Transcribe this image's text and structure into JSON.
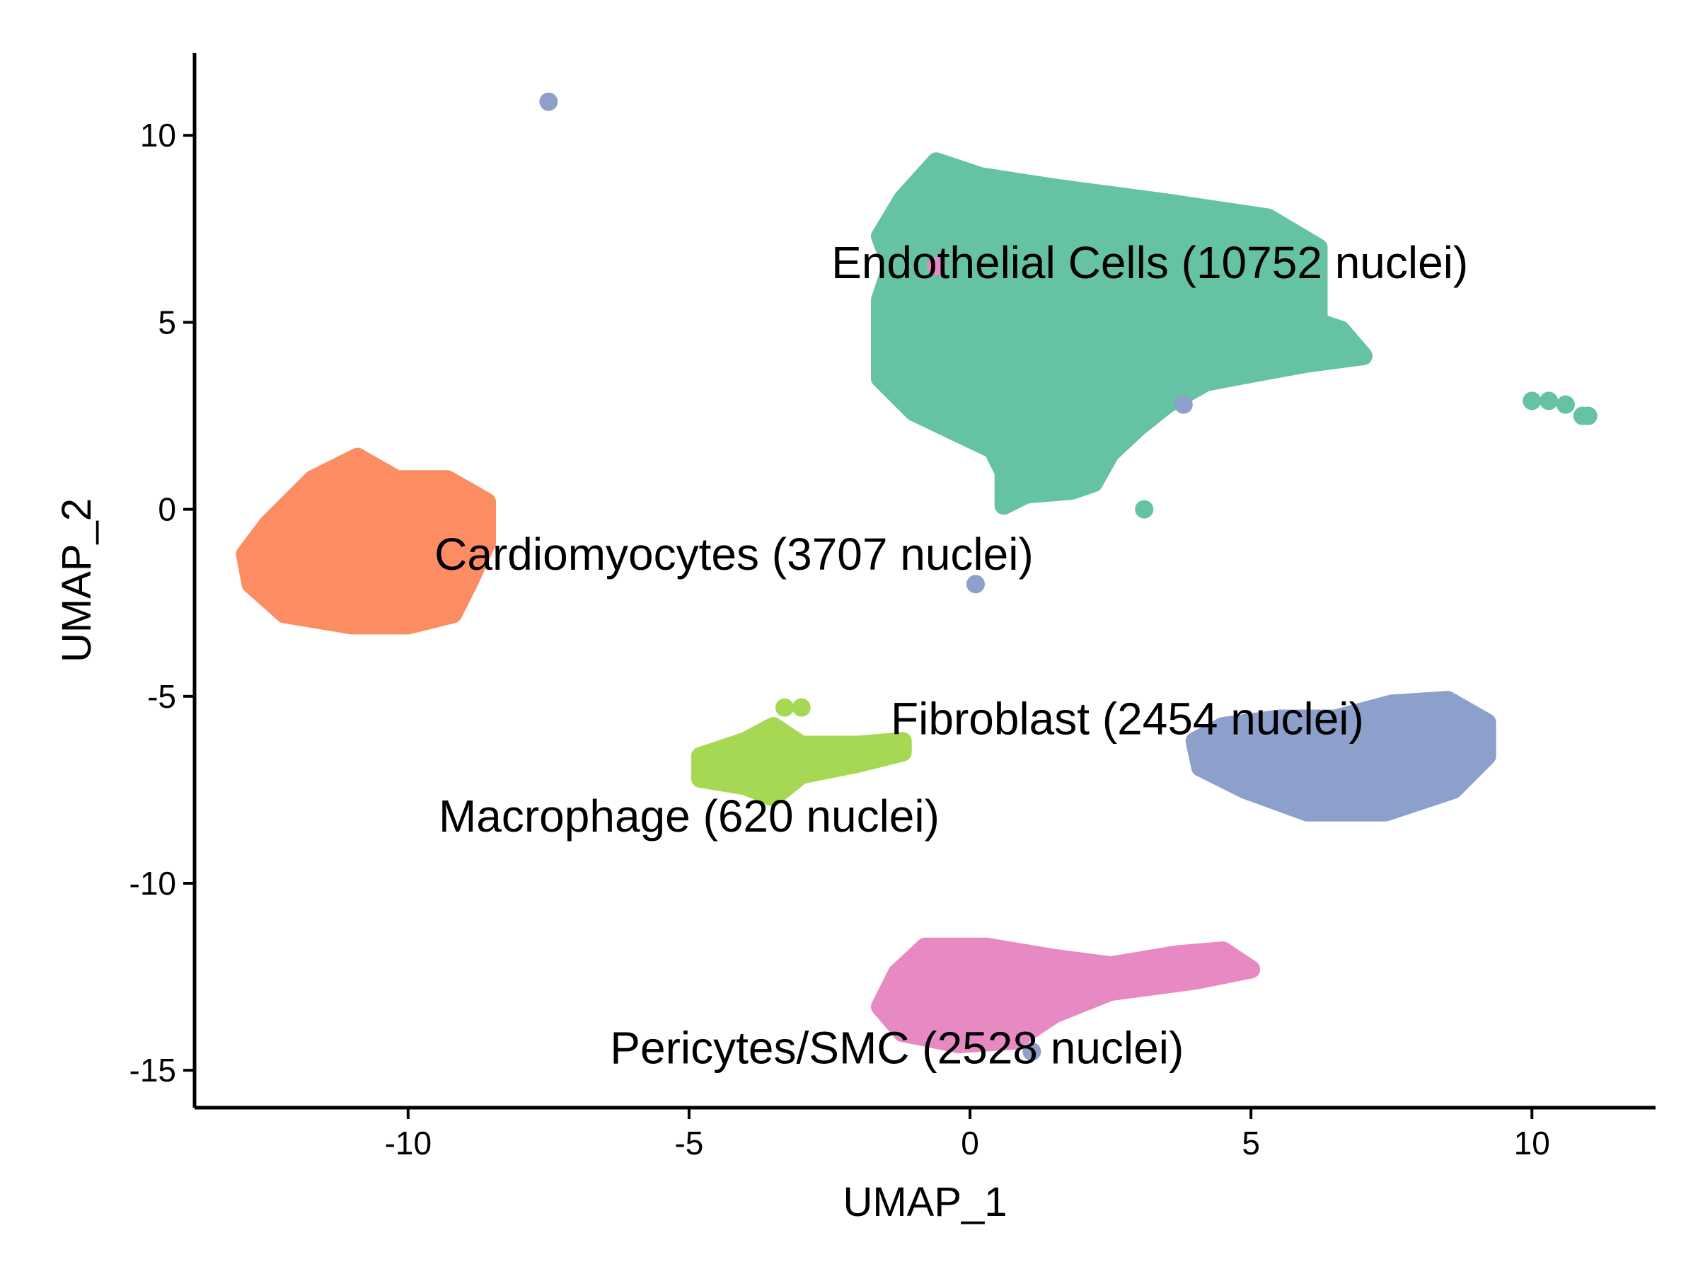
{
  "chart_data": {
    "type": "scatter",
    "title": "",
    "xlabel": "UMAP_1",
    "ylabel": "UMAP_2",
    "xlim": [
      -13.8,
      12.2
    ],
    "ylim": [
      -16,
      12.2
    ],
    "xticks": [
      -10,
      -5,
      0,
      5,
      10
    ],
    "yticks": [
      -15,
      -10,
      -5,
      0,
      5,
      10
    ],
    "xtick_labels": [
      "-10",
      "-5",
      "0",
      "5",
      "10"
    ],
    "ytick_labels": [
      "-15",
      "-10",
      "-5",
      "0",
      "5",
      "10"
    ],
    "grid": false,
    "legend": "none",
    "series": [
      {
        "label": "Endothelial Cells (10752 nuclei)",
        "color": "#66C2A5",
        "label_position": [
          3.2,
          6.6
        ],
        "outline": [
          [
            -1.6,
            7.3
          ],
          [
            -1.2,
            8.3
          ],
          [
            -0.6,
            9.3
          ],
          [
            0.2,
            8.9
          ],
          [
            1.5,
            8.6
          ],
          [
            3.5,
            8.2
          ],
          [
            5.3,
            7.8
          ],
          [
            6.2,
            7.0
          ],
          [
            6.2,
            5.0
          ],
          [
            6.6,
            4.8
          ],
          [
            7.0,
            4.1
          ],
          [
            6.0,
            3.9
          ],
          [
            4.9,
            3.6
          ],
          [
            4.2,
            3.4
          ],
          [
            3.5,
            2.8
          ],
          [
            3.0,
            2.2
          ],
          [
            2.5,
            1.5
          ],
          [
            2.2,
            0.7
          ],
          [
            1.8,
            0.5
          ],
          [
            1.0,
            0.4
          ],
          [
            0.6,
            0.1
          ],
          [
            0.6,
            1.0
          ],
          [
            0.4,
            1.6
          ],
          [
            -0.3,
            2.1
          ],
          [
            -1.0,
            2.6
          ],
          [
            -1.6,
            3.5
          ],
          [
            -1.6,
            4.6
          ],
          [
            -1.6,
            5.6
          ],
          [
            -1.4,
            6.5
          ]
        ],
        "stray_points": [
          [
            3.1,
            0.0
          ],
          [
            10.0,
            2.9
          ],
          [
            10.3,
            2.9
          ],
          [
            10.6,
            2.8
          ],
          [
            10.9,
            2.5
          ],
          [
            11.0,
            2.5
          ]
        ]
      },
      {
        "label": "Cardiomyocytes (3707 nuclei)",
        "color": "#FC8D62",
        "label_position": [
          -4.2,
          -1.2
        ],
        "outline": [
          [
            -12.5,
            -0.4
          ],
          [
            -11.7,
            0.8
          ],
          [
            -10.9,
            1.4
          ],
          [
            -10.2,
            0.8
          ],
          [
            -9.3,
            0.8
          ],
          [
            -8.6,
            0.2
          ],
          [
            -8.6,
            -0.9
          ],
          [
            -8.9,
            -1.9
          ],
          [
            -9.2,
            -2.8
          ],
          [
            -10.0,
            -3.1
          ],
          [
            -11.0,
            -3.1
          ],
          [
            -12.2,
            -2.8
          ],
          [
            -12.8,
            -2.0
          ],
          [
            -12.9,
            -1.2
          ]
        ],
        "stray_points": []
      },
      {
        "label": "Fibroblast (2454 nuclei)",
        "color": "#8DA0CB",
        "label_position": [
          2.8,
          -5.6
        ],
        "outline": [
          [
            4.0,
            -6.2
          ],
          [
            4.5,
            -5.8
          ],
          [
            5.5,
            -5.6
          ],
          [
            6.5,
            -5.6
          ],
          [
            7.5,
            -5.2
          ],
          [
            8.5,
            -5.1
          ],
          [
            9.2,
            -5.7
          ],
          [
            9.2,
            -6.6
          ],
          [
            8.6,
            -7.5
          ],
          [
            7.4,
            -8.1
          ],
          [
            6.0,
            -8.1
          ],
          [
            4.9,
            -7.5
          ],
          [
            4.1,
            -6.9
          ]
        ],
        "stray_points": [
          [
            -7.5,
            10.9
          ],
          [
            3.8,
            2.8
          ],
          [
            0.1,
            -2.0
          ],
          [
            1.1,
            -14.5
          ]
        ]
      },
      {
        "label": "Macrophage (620 nuclei)",
        "color": "#A6D854",
        "label_position": [
          -5.0,
          -8.2
        ],
        "outline": [
          [
            -4.8,
            -6.6
          ],
          [
            -4.0,
            -6.2
          ],
          [
            -3.5,
            -5.8
          ],
          [
            -3.0,
            -6.3
          ],
          [
            -2.0,
            -6.3
          ],
          [
            -1.2,
            -6.2
          ],
          [
            -1.2,
            -6.5
          ],
          [
            -2.0,
            -6.8
          ],
          [
            -3.0,
            -7.1
          ],
          [
            -3.5,
            -7.7
          ],
          [
            -4.0,
            -7.4
          ],
          [
            -4.8,
            -7.2
          ]
        ],
        "stray_points": [
          [
            -3.3,
            -5.3
          ],
          [
            -3.0,
            -5.3
          ]
        ]
      },
      {
        "label": "Pericytes/SMC (2528 nuclei)",
        "color": "#E78AC3",
        "label_position": [
          -1.3,
          -14.4
        ],
        "outline": [
          [
            -1.6,
            -13.3
          ],
          [
            -1.3,
            -12.4
          ],
          [
            -0.8,
            -11.7
          ],
          [
            0.3,
            -11.7
          ],
          [
            1.5,
            -12.0
          ],
          [
            2.5,
            -12.2
          ],
          [
            3.7,
            -11.9
          ],
          [
            4.5,
            -11.8
          ],
          [
            5.0,
            -12.3
          ],
          [
            4.0,
            -12.6
          ],
          [
            2.5,
            -12.9
          ],
          [
            1.5,
            -13.5
          ],
          [
            0.8,
            -14.2
          ],
          [
            -0.2,
            -14.3
          ],
          [
            -1.2,
            -14.0
          ]
        ],
        "stray_points": [
          [
            -0.6,
            6.5
          ]
        ]
      }
    ]
  }
}
